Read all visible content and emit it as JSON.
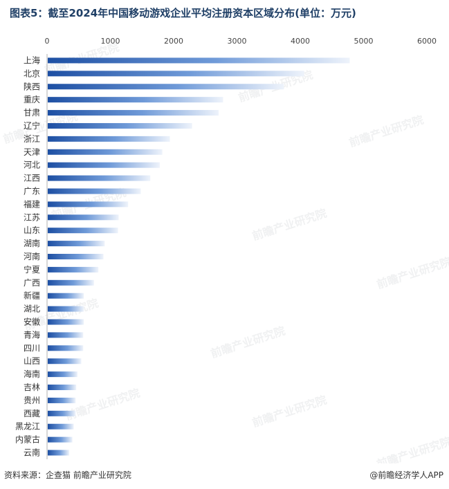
{
  "chart_data": {
    "type": "bar",
    "orientation": "horizontal",
    "title": "图表5：截至2024年中国移动游戏企业平均注册资本区域分布(单位：万元)",
    "categories": [
      "上海",
      "北京",
      "陕西",
      "重庆",
      "甘肃",
      "辽宁",
      "浙江",
      "天津",
      "河北",
      "江西",
      "广东",
      "福建",
      "江苏",
      "山东",
      "湖南",
      "河南",
      "宁夏",
      "广西",
      "新疆",
      "湖北",
      "安徽",
      "青海",
      "四川",
      "山西",
      "海南",
      "吉林",
      "贵州",
      "西藏",
      "黑龙江",
      "内蒙古",
      "云南"
    ],
    "values": [
      4770,
      4050,
      3730,
      2770,
      2700,
      2280,
      1930,
      1810,
      1770,
      1620,
      1470,
      1270,
      1120,
      1110,
      900,
      880,
      800,
      730,
      570,
      570,
      570,
      560,
      560,
      530,
      470,
      450,
      440,
      440,
      410,
      390,
      340
    ],
    "xlim": [
      0,
      6000
    ],
    "xticks": [
      0,
      1000,
      2000,
      3000,
      4000,
      5000,
      6000
    ],
    "grid": false,
    "legend": "none",
    "bar_color": "#2f63b4"
  },
  "source": "资料来源：企查猫 前瞻产业研究院",
  "brand": "@前瞻经济学人APP",
  "watermark": "前瞻产业研究院"
}
